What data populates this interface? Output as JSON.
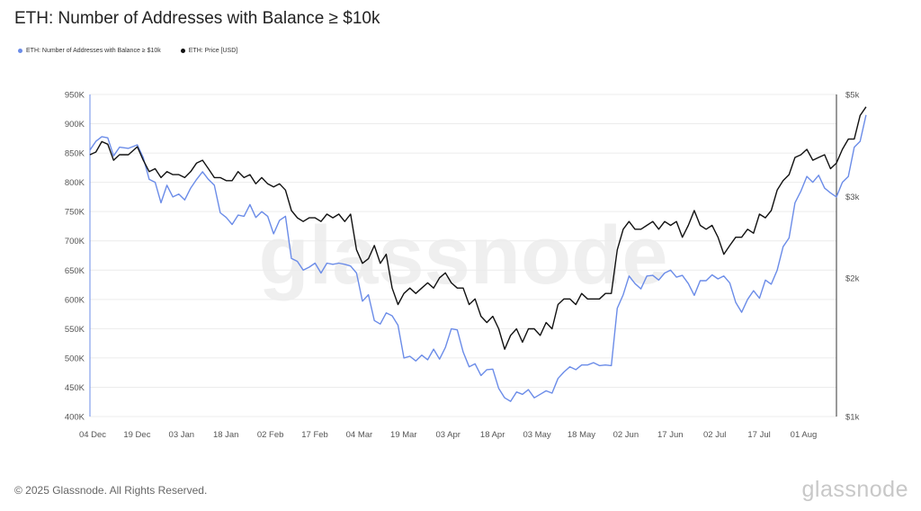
{
  "header": {
    "title": "ETH: Number of Addresses with Balance ≥ $10k"
  },
  "footer": {
    "copyright": "© 2025 Glassnode. All Rights Reserved.",
    "brand": "glassnode"
  },
  "watermark": "glassnode",
  "colors": {
    "addresses": "#6b8ce8",
    "price": "#111111",
    "grid": "#ececec"
  },
  "chart_data": {
    "type": "line",
    "title": "ETH: Number of Addresses with Balance ≥ $10k",
    "legend_placement": "top-left",
    "grid": true,
    "x_axis": {
      "ticks": [
        "04 Dec",
        "19 Dec",
        "03 Jan",
        "18 Jan",
        "02 Feb",
        "17 Feb",
        "04 Mar",
        "19 Mar",
        "03 Apr",
        "18 Apr",
        "03 May",
        "18 May",
        "02 Jun",
        "17 Jun",
        "02 Jul",
        "17 Jul",
        "01 Aug"
      ],
      "range_days": [
        0,
        252
      ]
    },
    "y_left": {
      "ticks": [
        "950K",
        "900K",
        "850K",
        "800K",
        "750K",
        "700K",
        "650K",
        "600K",
        "550K",
        "500K",
        "450K",
        "400K"
      ],
      "ylim": [
        400000,
        950000
      ]
    },
    "y_right": {
      "ticks": [
        "$5k",
        "$3k",
        "$2k",
        "$1k"
      ],
      "tick_values": [
        5000,
        3000,
        2000,
        1000
      ],
      "scale": "log",
      "ylim": [
        1000,
        5000
      ]
    },
    "series": [
      {
        "name": "ETH: Number of Addresses with Balance ≥ $10k",
        "axis": "left",
        "points": [
          [
            0,
            855000
          ],
          [
            2,
            870000
          ],
          [
            4,
            878000
          ],
          [
            6,
            876000
          ],
          [
            8,
            845000
          ],
          [
            10,
            860000
          ],
          [
            13,
            858000
          ],
          [
            16,
            864000
          ],
          [
            18,
            842000
          ],
          [
            20,
            805000
          ],
          [
            22,
            800000
          ],
          [
            24,
            765000
          ],
          [
            26,
            795000
          ],
          [
            28,
            775000
          ],
          [
            30,
            780000
          ],
          [
            32,
            770000
          ],
          [
            34,
            790000
          ],
          [
            36,
            805000
          ],
          [
            38,
            818000
          ],
          [
            40,
            805000
          ],
          [
            42,
            795000
          ],
          [
            44,
            748000
          ],
          [
            46,
            740000
          ],
          [
            48,
            728000
          ],
          [
            50,
            744000
          ],
          [
            52,
            742000
          ],
          [
            54,
            762000
          ],
          [
            56,
            740000
          ],
          [
            58,
            750000
          ],
          [
            60,
            742000
          ],
          [
            62,
            712000
          ],
          [
            64,
            735000
          ],
          [
            66,
            742000
          ],
          [
            68,
            670000
          ],
          [
            70,
            665000
          ],
          [
            72,
            650000
          ],
          [
            74,
            655000
          ],
          [
            76,
            662000
          ],
          [
            78,
            645000
          ],
          [
            80,
            662000
          ],
          [
            82,
            660000
          ],
          [
            84,
            662000
          ],
          [
            86,
            660000
          ],
          [
            88,
            657000
          ],
          [
            90,
            645000
          ],
          [
            92,
            597000
          ],
          [
            94,
            608000
          ],
          [
            96,
            564000
          ],
          [
            98,
            558000
          ],
          [
            100,
            577000
          ],
          [
            102,
            572000
          ],
          [
            104,
            556000
          ],
          [
            106,
            500000
          ],
          [
            108,
            503000
          ],
          [
            110,
            495000
          ],
          [
            112,
            505000
          ],
          [
            114,
            497000
          ],
          [
            116,
            515000
          ],
          [
            118,
            498000
          ],
          [
            120,
            518000
          ],
          [
            122,
            550000
          ],
          [
            124,
            548000
          ],
          [
            126,
            510000
          ],
          [
            128,
            485000
          ],
          [
            130,
            490000
          ],
          [
            132,
            470000
          ],
          [
            134,
            480000
          ],
          [
            136,
            481000
          ],
          [
            138,
            448000
          ],
          [
            140,
            432000
          ],
          [
            142,
            426000
          ],
          [
            144,
            442000
          ],
          [
            146,
            438000
          ],
          [
            148,
            446000
          ],
          [
            150,
            432000
          ],
          [
            152,
            438000
          ],
          [
            154,
            444000
          ],
          [
            156,
            440000
          ],
          [
            158,
            465000
          ],
          [
            160,
            476000
          ],
          [
            162,
            485000
          ],
          [
            164,
            480000
          ],
          [
            166,
            488000
          ],
          [
            168,
            488000
          ],
          [
            170,
            492000
          ],
          [
            172,
            487000
          ],
          [
            174,
            488000
          ],
          [
            176,
            487000
          ],
          [
            178,
            585000
          ],
          [
            180,
            608000
          ],
          [
            182,
            640000
          ],
          [
            184,
            627000
          ],
          [
            186,
            618000
          ],
          [
            188,
            640000
          ],
          [
            190,
            641000
          ],
          [
            192,
            633000
          ],
          [
            194,
            645000
          ],
          [
            196,
            650000
          ],
          [
            198,
            638000
          ],
          [
            200,
            641000
          ],
          [
            202,
            627000
          ],
          [
            204,
            607000
          ],
          [
            206,
            632000
          ],
          [
            208,
            632000
          ],
          [
            210,
            642000
          ],
          [
            212,
            635000
          ],
          [
            214,
            640000
          ],
          [
            216,
            628000
          ],
          [
            218,
            595000
          ],
          [
            220,
            578000
          ],
          [
            222,
            600000
          ],
          [
            224,
            615000
          ],
          [
            226,
            602000
          ],
          [
            228,
            633000
          ],
          [
            230,
            626000
          ],
          [
            232,
            650000
          ],
          [
            234,
            690000
          ],
          [
            236,
            705000
          ],
          [
            238,
            765000
          ],
          [
            240,
            785000
          ],
          [
            242,
            810000
          ],
          [
            244,
            800000
          ],
          [
            246,
            812000
          ],
          [
            248,
            790000
          ],
          [
            250,
            782000
          ],
          [
            252,
            775000
          ],
          [
            254,
            800000
          ],
          [
            256,
            810000
          ],
          [
            258,
            860000
          ],
          [
            260,
            870000
          ],
          [
            262,
            915000
          ]
        ]
      },
      {
        "name": "ETH: Price [USD]",
        "axis": "right",
        "points": [
          [
            0,
            3700
          ],
          [
            2,
            3750
          ],
          [
            4,
            3950
          ],
          [
            6,
            3900
          ],
          [
            8,
            3600
          ],
          [
            10,
            3700
          ],
          [
            13,
            3700
          ],
          [
            16,
            3850
          ],
          [
            18,
            3600
          ],
          [
            20,
            3400
          ],
          [
            22,
            3450
          ],
          [
            24,
            3300
          ],
          [
            26,
            3400
          ],
          [
            28,
            3350
          ],
          [
            30,
            3350
          ],
          [
            32,
            3300
          ],
          [
            34,
            3400
          ],
          [
            36,
            3550
          ],
          [
            38,
            3600
          ],
          [
            40,
            3450
          ],
          [
            42,
            3300
          ],
          [
            44,
            3300
          ],
          [
            46,
            3250
          ],
          [
            48,
            3250
          ],
          [
            50,
            3400
          ],
          [
            52,
            3300
          ],
          [
            54,
            3350
          ],
          [
            56,
            3200
          ],
          [
            58,
            3300
          ],
          [
            60,
            3200
          ],
          [
            62,
            3150
          ],
          [
            64,
            3200
          ],
          [
            66,
            3100
          ],
          [
            68,
            2800
          ],
          [
            70,
            2700
          ],
          [
            72,
            2650
          ],
          [
            74,
            2700
          ],
          [
            76,
            2700
          ],
          [
            78,
            2650
          ],
          [
            80,
            2750
          ],
          [
            82,
            2700
          ],
          [
            84,
            2750
          ],
          [
            86,
            2650
          ],
          [
            88,
            2750
          ],
          [
            90,
            2300
          ],
          [
            92,
            2150
          ],
          [
            94,
            2200
          ],
          [
            96,
            2350
          ],
          [
            98,
            2150
          ],
          [
            100,
            2250
          ],
          [
            102,
            1900
          ],
          [
            104,
            1750
          ],
          [
            106,
            1850
          ],
          [
            108,
            1900
          ],
          [
            110,
            1850
          ],
          [
            112,
            1900
          ],
          [
            114,
            1950
          ],
          [
            116,
            1900
          ],
          [
            118,
            2000
          ],
          [
            120,
            2050
          ],
          [
            122,
            1950
          ],
          [
            124,
            1900
          ],
          [
            126,
            1900
          ],
          [
            128,
            1750
          ],
          [
            130,
            1800
          ],
          [
            132,
            1650
          ],
          [
            134,
            1600
          ],
          [
            136,
            1650
          ],
          [
            138,
            1550
          ],
          [
            140,
            1400
          ],
          [
            142,
            1500
          ],
          [
            144,
            1550
          ],
          [
            146,
            1450
          ],
          [
            148,
            1550
          ],
          [
            150,
            1550
          ],
          [
            152,
            1500
          ],
          [
            154,
            1600
          ],
          [
            156,
            1550
          ],
          [
            158,
            1750
          ],
          [
            160,
            1800
          ],
          [
            162,
            1800
          ],
          [
            164,
            1750
          ],
          [
            166,
            1850
          ],
          [
            168,
            1800
          ],
          [
            170,
            1800
          ],
          [
            172,
            1800
          ],
          [
            174,
            1850
          ],
          [
            176,
            1850
          ],
          [
            178,
            2300
          ],
          [
            180,
            2550
          ],
          [
            182,
            2650
          ],
          [
            184,
            2550
          ],
          [
            186,
            2550
          ],
          [
            188,
            2600
          ],
          [
            190,
            2650
          ],
          [
            192,
            2550
          ],
          [
            194,
            2650
          ],
          [
            196,
            2600
          ],
          [
            198,
            2650
          ],
          [
            200,
            2450
          ],
          [
            202,
            2600
          ],
          [
            204,
            2800
          ],
          [
            206,
            2600
          ],
          [
            208,
            2550
          ],
          [
            210,
            2600
          ],
          [
            212,
            2450
          ],
          [
            214,
            2250
          ],
          [
            216,
            2350
          ],
          [
            218,
            2450
          ],
          [
            220,
            2450
          ],
          [
            222,
            2550
          ],
          [
            224,
            2500
          ],
          [
            226,
            2750
          ],
          [
            228,
            2700
          ],
          [
            230,
            2800
          ],
          [
            232,
            3100
          ],
          [
            234,
            3250
          ],
          [
            236,
            3350
          ],
          [
            238,
            3650
          ],
          [
            240,
            3700
          ],
          [
            242,
            3800
          ],
          [
            244,
            3600
          ],
          [
            246,
            3650
          ],
          [
            248,
            3700
          ],
          [
            250,
            3450
          ],
          [
            252,
            3550
          ],
          [
            254,
            3800
          ],
          [
            256,
            4000
          ],
          [
            258,
            4000
          ],
          [
            260,
            4500
          ],
          [
            262,
            4700
          ]
        ]
      }
    ]
  },
  "legend": [
    {
      "label": "ETH: Number of Addresses with Balance ≥ $10k",
      "color": "#6b8ce8"
    },
    {
      "label": "ETH: Price [USD]",
      "color": "#111111"
    }
  ]
}
